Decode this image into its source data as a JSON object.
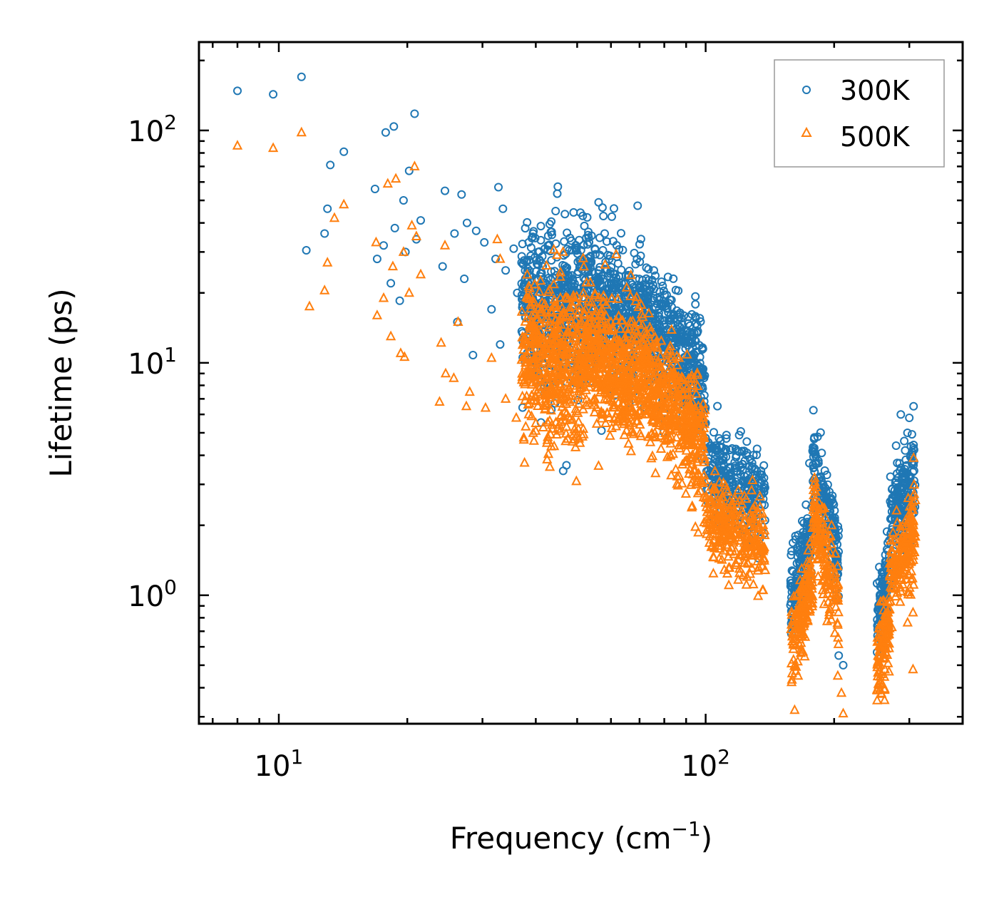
{
  "chart_data": {
    "type": "scatter",
    "xscale": "log",
    "yscale": "log",
    "xlim": [
      6.5,
      400
    ],
    "ylim": [
      0.28,
      240
    ],
    "xlabel": "Frequency (cm",
    "xlabel_sup": "−1",
    "xlabel_tail": ")",
    "ylabel": "Lifetime (ps)",
    "xticks": [
      {
        "base": "10",
        "exp": "1",
        "value": 10
      },
      {
        "base": "10",
        "exp": "2",
        "value": 100
      }
    ],
    "yticks": [
      {
        "base": "10",
        "exp": "0",
        "value": 1
      },
      {
        "base": "10",
        "exp": "1",
        "value": 10
      },
      {
        "base": "10",
        "exp": "2",
        "value": 100
      }
    ],
    "legend_position": "top-right",
    "series": [
      {
        "name": "300K",
        "marker": "circle",
        "color": "#1f77b4",
        "points": [
          [
            8.0,
            148
          ],
          [
            9.7,
            143
          ],
          [
            11.3,
            170
          ],
          [
            11.6,
            30.5
          ],
          [
            13.0,
            46
          ],
          [
            12.8,
            36
          ],
          [
            13.2,
            71
          ],
          [
            14.2,
            81
          ],
          [
            16.8,
            56
          ],
          [
            17.8,
            98
          ],
          [
            18.6,
            104
          ],
          [
            17.0,
            28
          ],
          [
            17.6,
            32
          ],
          [
            18.3,
            22
          ],
          [
            19.2,
            18.5
          ],
          [
            19.6,
            50
          ],
          [
            18.7,
            38
          ],
          [
            20.2,
            67
          ],
          [
            20.8,
            118
          ],
          [
            21.5,
            41
          ],
          [
            21.0,
            34
          ],
          [
            19.8,
            30
          ],
          [
            24.5,
            55
          ],
          [
            26.8,
            53
          ],
          [
            24.2,
            26
          ],
          [
            25.8,
            36
          ],
          [
            26.2,
            15
          ],
          [
            27.2,
            23
          ],
          [
            28.5,
            10.8
          ],
          [
            32.7,
            57
          ],
          [
            33.5,
            46
          ],
          [
            30.3,
            33
          ],
          [
            35.5,
            31
          ],
          [
            32.2,
            28
          ],
          [
            31.5,
            17
          ],
          [
            33.0,
            12
          ],
          [
            34.0,
            25
          ],
          [
            36.2,
            20
          ],
          [
            27.6,
            40
          ],
          [
            29.0,
            37
          ],
          [
            38.5,
            33
          ],
          [
            40.5,
            30
          ],
          [
            43.0,
            32
          ],
          [
            46.5,
            29
          ],
          [
            52.0,
            28
          ],
          [
            55.0,
            31
          ],
          [
            58.0,
            36
          ],
          [
            60.0,
            22
          ],
          [
            62.5,
            20
          ],
          [
            65.0,
            19.5
          ],
          [
            70.0,
            16
          ],
          [
            75.0,
            13
          ],
          [
            80.0,
            11
          ],
          [
            88.0,
            9.5
          ],
          [
            95.0,
            7
          ],
          [
            100.0,
            5.5
          ],
          [
            106.0,
            4.2
          ],
          [
            110.0,
            3.8
          ],
          [
            118.0,
            4.0
          ],
          [
            125.0,
            4.1
          ],
          [
            130.0,
            2.8
          ],
          [
            135.0,
            2.7
          ],
          [
            175.0,
            3.7
          ],
          [
            180.0,
            3.4
          ],
          [
            210.0,
            0.5
          ],
          [
            205.0,
            0.55
          ],
          [
            307.0,
            6.5
          ],
          [
            300.0,
            5.8
          ],
          [
            297.0,
            5.0
          ]
        ],
        "bands": [
          {
            "from": 37,
            "to": 52,
            "center": 18.0,
            "slope": -0.3,
            "spread": 0.17,
            "count": 480
          },
          {
            "from": 52,
            "to": 68,
            "center": 17.0,
            "slope": -1.0,
            "spread": 0.14,
            "count": 420
          },
          {
            "from": 68,
            "to": 100,
            "center": 12.0,
            "slope": -2.0,
            "spread": 0.13,
            "count": 520
          },
          {
            "from": 100,
            "to": 138,
            "center": 3.1,
            "slope": -0.8,
            "spread": 0.09,
            "count": 280
          },
          {
            "from": 158,
            "to": 178,
            "center": 1.3,
            "slope": 6.0,
            "spread": 0.09,
            "count": 160
          },
          {
            "from": 178,
            "to": 205,
            "center": 2.4,
            "slope": -7.0,
            "spread": 0.09,
            "count": 160
          },
          {
            "from": 252,
            "to": 270,
            "center": 1.0,
            "slope": 7.0,
            "spread": 0.09,
            "count": 110
          },
          {
            "from": 270,
            "to": 310,
            "center": 2.6,
            "slope": 3.0,
            "spread": 0.1,
            "count": 180
          }
        ]
      },
      {
        "name": "500K",
        "marker": "triangle",
        "color": "#ff7f0e",
        "points": [
          [
            8.0,
            86
          ],
          [
            9.7,
            84
          ],
          [
            11.3,
            98
          ],
          [
            11.8,
            17.5
          ],
          [
            13.0,
            27
          ],
          [
            12.8,
            20.5
          ],
          [
            13.5,
            42
          ],
          [
            14.2,
            48
          ],
          [
            16.9,
            33
          ],
          [
            17.0,
            16
          ],
          [
            17.6,
            19
          ],
          [
            18.0,
            59
          ],
          [
            18.5,
            26
          ],
          [
            18.8,
            62
          ],
          [
            18.3,
            13
          ],
          [
            19.6,
            30
          ],
          [
            19.3,
            11
          ],
          [
            19.7,
            10.6
          ],
          [
            20.5,
            39
          ],
          [
            20.8,
            70
          ],
          [
            21.5,
            24
          ],
          [
            21.0,
            35
          ],
          [
            20.2,
            20
          ],
          [
            23.8,
            6.8
          ],
          [
            24.5,
            32
          ],
          [
            24.0,
            12.2
          ],
          [
            24.6,
            9
          ],
          [
            25.7,
            8.6
          ],
          [
            26.3,
            15
          ],
          [
            27.5,
            6.5
          ],
          [
            28.0,
            7.5
          ],
          [
            30.5,
            6.4
          ],
          [
            31.5,
            10.5
          ],
          [
            32.5,
            34
          ],
          [
            33.0,
            28
          ],
          [
            34.0,
            7.0
          ],
          [
            36.0,
            5.8
          ],
          [
            38.5,
            6.0
          ],
          [
            40.0,
            5.5
          ],
          [
            45.0,
            5.2
          ],
          [
            47.0,
            4.6
          ],
          [
            50.0,
            9.5
          ],
          [
            55.0,
            7.0
          ],
          [
            60.0,
            15.0
          ],
          [
            64.0,
            11
          ],
          [
            70.0,
            9
          ],
          [
            75.0,
            6.0
          ],
          [
            83.0,
            5.6
          ],
          [
            90.0,
            3.8
          ],
          [
            95.0,
            3.0
          ],
          [
            100.0,
            2.5
          ],
          [
            105.0,
            2.1
          ],
          [
            115.0,
            1.6
          ],
          [
            120.0,
            1.3
          ],
          [
            125.0,
            1.2
          ],
          [
            130.0,
            1.8
          ],
          [
            176.0,
            1.7
          ],
          [
            208.0,
            0.38
          ],
          [
            210.0,
            0.31
          ],
          [
            204.0,
            0.45
          ],
          [
            307.0,
            3.9
          ],
          [
            306.0,
            0.48
          ]
        ],
        "bands": [
          {
            "from": 37,
            "to": 52,
            "center": 10.0,
            "slope": -0.3,
            "spread": 0.17,
            "count": 480
          },
          {
            "from": 52,
            "to": 68,
            "center": 9.5,
            "slope": -1.1,
            "spread": 0.14,
            "count": 420
          },
          {
            "from": 68,
            "to": 100,
            "center": 6.5,
            "slope": -2.1,
            "spread": 0.13,
            "count": 520
          },
          {
            "from": 100,
            "to": 138,
            "center": 1.85,
            "slope": -1.0,
            "spread": 0.09,
            "count": 280
          },
          {
            "from": 158,
            "to": 178,
            "center": 0.8,
            "slope": 5.5,
            "spread": 0.09,
            "count": 160
          },
          {
            "from": 178,
            "to": 205,
            "center": 1.4,
            "slope": -7.0,
            "spread": 0.09,
            "count": 160
          },
          {
            "from": 252,
            "to": 270,
            "center": 0.6,
            "slope": 7.0,
            "spread": 0.09,
            "count": 110
          },
          {
            "from": 270,
            "to": 310,
            "center": 1.5,
            "slope": 3.0,
            "spread": 0.1,
            "count": 180
          }
        ]
      }
    ]
  }
}
